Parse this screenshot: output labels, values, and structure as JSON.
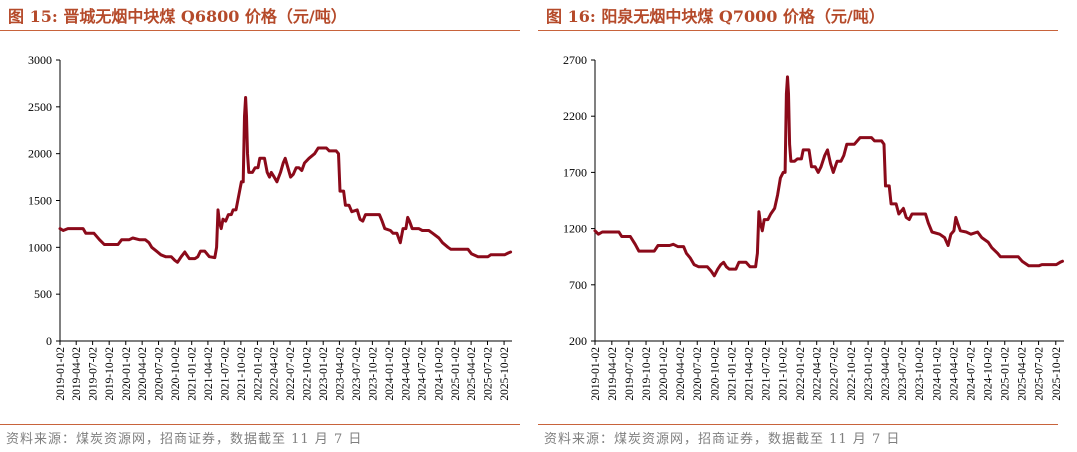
{
  "source_note": "资料来源：煤炭资源网，招商证券，数据截至 11 月 7 日",
  "chart_data": [
    {
      "type": "line",
      "title": "图 15:  晋城无烟中块煤 Q6800 价格（元/吨）",
      "color": "#8b0a1a",
      "ylim": [
        0,
        3000
      ],
      "yticks": [
        0,
        500,
        1000,
        1500,
        2000,
        2500,
        3000
      ],
      "xticks": [
        "2019-01-02",
        "2019-04-02",
        "2019-07-02",
        "2019-10-02",
        "2020-01-02",
        "2020-04-02",
        "2020-07-02",
        "2020-10-02",
        "2021-01-02",
        "2021-04-02",
        "2021-07-02",
        "2021-10-02",
        "2022-01-02",
        "2022-04-02",
        "2022-07-02",
        "2022-10-02",
        "2023-01-02",
        "2023-04-02",
        "2023-07-02",
        "2023-10-02",
        "2024-01-02",
        "2024-04-02",
        "2024-07-02",
        "2024-10-02",
        "2025-01-02",
        "2025-04-02",
        "2025-07-02",
        "2025-10-02"
      ],
      "points": [
        [
          "2019-01-02",
          1200
        ],
        [
          "2019-01-20",
          1180
        ],
        [
          "2019-02-15",
          1200
        ],
        [
          "2019-05-10",
          1200
        ],
        [
          "2019-05-25",
          1150
        ],
        [
          "2019-07-10",
          1150
        ],
        [
          "2019-08-10",
          1080
        ],
        [
          "2019-09-05",
          1030
        ],
        [
          "2019-11-20",
          1030
        ],
        [
          "2019-12-10",
          1080
        ],
        [
          "2020-01-20",
          1080
        ],
        [
          "2020-02-10",
          1100
        ],
        [
          "2020-03-20",
          1080
        ],
        [
          "2020-04-20",
          1080
        ],
        [
          "2020-05-10",
          1050
        ],
        [
          "2020-05-25",
          1000
        ],
        [
          "2020-06-20",
          960
        ],
        [
          "2020-07-15",
          920
        ],
        [
          "2020-08-10",
          900
        ],
        [
          "2020-09-10",
          900
        ],
        [
          "2020-10-01",
          860
        ],
        [
          "2020-10-15",
          840
        ],
        [
          "2020-11-05",
          900
        ],
        [
          "2020-11-25",
          950
        ],
        [
          "2020-12-05",
          920
        ],
        [
          "2020-12-20",
          880
        ],
        [
          "2021-01-20",
          880
        ],
        [
          "2021-02-05",
          900
        ],
        [
          "2021-02-20",
          960
        ],
        [
          "2021-03-15",
          960
        ],
        [
          "2021-04-10",
          900
        ],
        [
          "2021-05-10",
          890
        ],
        [
          "2021-05-20",
          1000
        ],
        [
          "2021-05-28",
          1400
        ],
        [
          "2021-06-05",
          1270
        ],
        [
          "2021-06-15",
          1200
        ],
        [
          "2021-06-25",
          1300
        ],
        [
          "2021-07-10",
          1280
        ],
        [
          "2021-07-25",
          1350
        ],
        [
          "2021-08-10",
          1350
        ],
        [
          "2021-08-20",
          1400
        ],
        [
          "2021-09-05",
          1400
        ],
        [
          "2021-09-15",
          1500
        ],
        [
          "2021-09-25",
          1600
        ],
        [
          "2021-10-05",
          1700
        ],
        [
          "2021-10-15",
          1700
        ],
        [
          "2021-10-22",
          2400
        ],
        [
          "2021-10-28",
          2600
        ],
        [
          "2021-11-02",
          2400
        ],
        [
          "2021-11-08",
          2000
        ],
        [
          "2021-11-15",
          1800
        ],
        [
          "2021-12-05",
          1800
        ],
        [
          "2021-12-20",
          1850
        ],
        [
          "2022-01-05",
          1850
        ],
        [
          "2022-01-15",
          1950
        ],
        [
          "2022-02-10",
          1950
        ],
        [
          "2022-02-25",
          1800
        ],
        [
          "2022-03-10",
          1750
        ],
        [
          "2022-03-20",
          1800
        ],
        [
          "2022-04-05",
          1750
        ],
        [
          "2022-04-20",
          1700
        ],
        [
          "2022-05-10",
          1800
        ],
        [
          "2022-05-25",
          1900
        ],
        [
          "2022-06-05",
          1950
        ],
        [
          "2022-06-20",
          1850
        ],
        [
          "2022-07-05",
          1750
        ],
        [
          "2022-07-20",
          1780
        ],
        [
          "2022-08-05",
          1850
        ],
        [
          "2022-08-20",
          1850
        ],
        [
          "2022-09-05",
          1820
        ],
        [
          "2022-09-20",
          1900
        ],
        [
          "2022-10-15",
          1950
        ],
        [
          "2022-11-15",
          2000
        ],
        [
          "2022-12-05",
          2060
        ],
        [
          "2023-01-20",
          2060
        ],
        [
          "2023-02-05",
          2030
        ],
        [
          "2023-03-15",
          2030
        ],
        [
          "2023-03-28",
          2000
        ],
        [
          "2023-04-05",
          1600
        ],
        [
          "2023-04-25",
          1600
        ],
        [
          "2023-05-05",
          1450
        ],
        [
          "2023-05-25",
          1450
        ],
        [
          "2023-06-10",
          1380
        ],
        [
          "2023-07-10",
          1400
        ],
        [
          "2023-07-25",
          1300
        ],
        [
          "2023-08-10",
          1280
        ],
        [
          "2023-08-25",
          1350
        ],
        [
          "2023-11-10",
          1350
        ],
        [
          "2023-11-25",
          1280
        ],
        [
          "2023-12-10",
          1200
        ],
        [
          "2024-01-10",
          1180
        ],
        [
          "2024-01-25",
          1150
        ],
        [
          "2024-02-15",
          1150
        ],
        [
          "2024-03-05",
          1050
        ],
        [
          "2024-03-20",
          1200
        ],
        [
          "2024-04-05",
          1200
        ],
        [
          "2024-04-15",
          1320
        ],
        [
          "2024-04-25",
          1280
        ],
        [
          "2024-05-10",
          1200
        ],
        [
          "2024-06-15",
          1200
        ],
        [
          "2024-07-05",
          1180
        ],
        [
          "2024-08-10",
          1180
        ],
        [
          "2024-09-01",
          1150
        ],
        [
          "2024-10-05",
          1100
        ],
        [
          "2024-10-25",
          1050
        ],
        [
          "2024-11-25",
          1000
        ],
        [
          "2024-12-10",
          980
        ],
        [
          "2025-03-15",
          980
        ],
        [
          "2025-04-05",
          930
        ],
        [
          "2025-05-10",
          900
        ],
        [
          "2025-07-05",
          900
        ],
        [
          "2025-07-20",
          920
        ],
        [
          "2025-10-05",
          920
        ],
        [
          "2025-10-25",
          940
        ],
        [
          "2025-11-07",
          950
        ]
      ]
    },
    {
      "type": "line",
      "title": "图 16:  阳泉无烟中块煤 Q7000 价格（元/吨）",
      "color": "#8b0a1a",
      "ylim": [
        200,
        2700
      ],
      "yticks": [
        200,
        700,
        1200,
        1700,
        2200,
        2700
      ],
      "xticks": [
        "2019-01-02",
        "2019-04-02",
        "2019-07-02",
        "2019-10-02",
        "2020-01-02",
        "2020-04-02",
        "2020-07-02",
        "2020-10-02",
        "2021-01-02",
        "2021-04-02",
        "2021-07-02",
        "2021-10-02",
        "2022-01-02",
        "2022-04-02",
        "2022-07-02",
        "2022-10-02",
        "2023-01-02",
        "2023-04-02",
        "2023-07-02",
        "2023-10-02",
        "2024-01-02",
        "2024-04-02",
        "2024-07-02",
        "2024-10-02",
        "2025-01-02",
        "2025-04-02",
        "2025-07-02",
        "2025-10-02"
      ],
      "points": [
        [
          "2019-01-02",
          1180
        ],
        [
          "2019-01-20",
          1150
        ],
        [
          "2019-02-10",
          1170
        ],
        [
          "2019-05-10",
          1170
        ],
        [
          "2019-05-25",
          1130
        ],
        [
          "2019-07-10",
          1130
        ],
        [
          "2019-08-05",
          1060
        ],
        [
          "2019-08-25",
          1000
        ],
        [
          "2019-11-15",
          1000
        ],
        [
          "2019-12-05",
          1050
        ],
        [
          "2020-02-05",
          1050
        ],
        [
          "2020-02-25",
          1060
        ],
        [
          "2020-03-20",
          1040
        ],
        [
          "2020-04-20",
          1040
        ],
        [
          "2020-05-05",
          980
        ],
        [
          "2020-05-25",
          940
        ],
        [
          "2020-06-15",
          880
        ],
        [
          "2020-07-10",
          860
        ],
        [
          "2020-08-25",
          860
        ],
        [
          "2020-09-15",
          820
        ],
        [
          "2020-10-01",
          780
        ],
        [
          "2020-10-20",
          840
        ],
        [
          "2020-11-05",
          880
        ],
        [
          "2020-11-20",
          900
        ],
        [
          "2020-12-05",
          860
        ],
        [
          "2020-12-20",
          840
        ],
        [
          "2021-01-25",
          840
        ],
        [
          "2021-02-10",
          900
        ],
        [
          "2021-02-25",
          900
        ],
        [
          "2021-03-20",
          900
        ],
        [
          "2021-04-10",
          860
        ],
        [
          "2021-05-10",
          860
        ],
        [
          "2021-05-20",
          980
        ],
        [
          "2021-05-28",
          1350
        ],
        [
          "2021-06-05",
          1250
        ],
        [
          "2021-06-15",
          1180
        ],
        [
          "2021-06-25",
          1280
        ],
        [
          "2021-07-15",
          1280
        ],
        [
          "2021-07-30",
          1330
        ],
        [
          "2021-08-20",
          1380
        ],
        [
          "2021-09-05",
          1500
        ],
        [
          "2021-09-20",
          1650
        ],
        [
          "2021-10-05",
          1700
        ],
        [
          "2021-10-15",
          1700
        ],
        [
          "2021-10-22",
          2400
        ],
        [
          "2021-10-28",
          2550
        ],
        [
          "2021-11-02",
          2400
        ],
        [
          "2021-11-08",
          1950
        ],
        [
          "2021-11-15",
          1800
        ],
        [
          "2021-12-05",
          1800
        ],
        [
          "2021-12-20",
          1820
        ],
        [
          "2022-01-10",
          1820
        ],
        [
          "2022-01-20",
          1900
        ],
        [
          "2022-02-20",
          1900
        ],
        [
          "2022-03-05",
          1750
        ],
        [
          "2022-03-25",
          1750
        ],
        [
          "2022-04-10",
          1700
        ],
        [
          "2022-04-25",
          1750
        ],
        [
          "2022-05-15",
          1850
        ],
        [
          "2022-05-30",
          1900
        ],
        [
          "2022-06-15",
          1780
        ],
        [
          "2022-06-30",
          1700
        ],
        [
          "2022-07-20",
          1800
        ],
        [
          "2022-08-10",
          1800
        ],
        [
          "2022-08-25",
          1850
        ],
        [
          "2022-09-10",
          1950
        ],
        [
          "2022-10-20",
          1950
        ],
        [
          "2022-11-20",
          2010
        ],
        [
          "2023-01-20",
          2010
        ],
        [
          "2023-02-05",
          1980
        ],
        [
          "2023-03-15",
          1980
        ],
        [
          "2023-03-28",
          1950
        ],
        [
          "2023-04-05",
          1580
        ],
        [
          "2023-04-25",
          1580
        ],
        [
          "2023-05-05",
          1420
        ],
        [
          "2023-06-01",
          1420
        ],
        [
          "2023-06-15",
          1330
        ],
        [
          "2023-07-10",
          1380
        ],
        [
          "2023-07-25",
          1300
        ],
        [
          "2023-08-10",
          1280
        ],
        [
          "2023-08-25",
          1330
        ],
        [
          "2023-11-05",
          1330
        ],
        [
          "2023-11-20",
          1250
        ],
        [
          "2023-12-10",
          1170
        ],
        [
          "2024-01-20",
          1150
        ],
        [
          "2024-02-15",
          1120
        ],
        [
          "2024-03-05",
          1050
        ],
        [
          "2024-03-20",
          1150
        ],
        [
          "2024-04-05",
          1180
        ],
        [
          "2024-04-15",
          1300
        ],
        [
          "2024-04-25",
          1250
        ],
        [
          "2024-05-10",
          1180
        ],
        [
          "2024-06-10",
          1170
        ],
        [
          "2024-07-05",
          1150
        ],
        [
          "2024-08-10",
          1170
        ],
        [
          "2024-09-01",
          1120
        ],
        [
          "2024-10-05",
          1080
        ],
        [
          "2024-10-25",
          1030
        ],
        [
          "2024-11-25",
          980
        ],
        [
          "2024-12-10",
          950
        ],
        [
          "2025-03-15",
          950
        ],
        [
          "2025-04-05",
          910
        ],
        [
          "2025-05-10",
          870
        ],
        [
          "2025-07-05",
          870
        ],
        [
          "2025-07-20",
          880
        ],
        [
          "2025-10-05",
          880
        ],
        [
          "2025-10-25",
          900
        ],
        [
          "2025-11-07",
          910
        ]
      ]
    }
  ]
}
